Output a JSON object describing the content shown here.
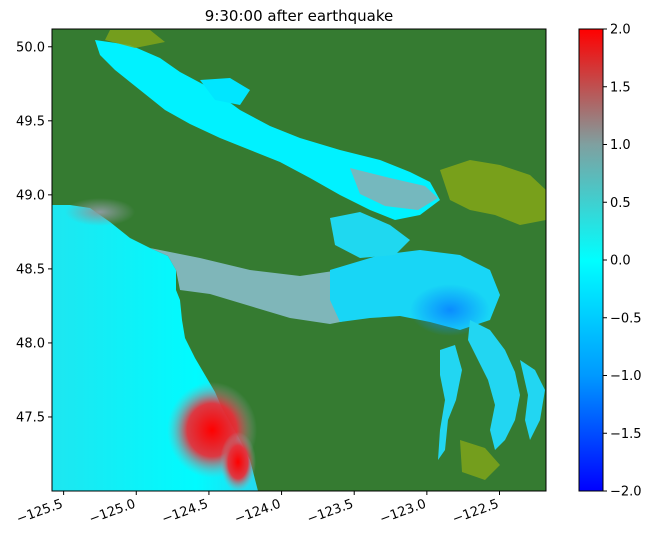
{
  "chart_data": {
    "type": "heatmap",
    "title": "9:30:00 after earthquake",
    "xlabel": "",
    "ylabel": "",
    "xlim": [
      -125.58,
      -122.18
    ],
    "ylim": [
      47.0,
      50.12
    ],
    "xticks": [
      -125.5,
      -125.0,
      -124.5,
      -124.0,
      -123.5,
      -123.0,
      -122.5
    ],
    "xtick_labels": [
      "−125.5",
      "−125.0",
      "−124.5",
      "−124.0",
      "−123.5",
      "−123.0",
      "−122.5"
    ],
    "yticks": [
      47.5,
      48.0,
      48.5,
      49.0,
      49.5,
      50.0
    ],
    "ytick_labels": [
      "47.5",
      "48.0",
      "48.5",
      "49.0",
      "49.5",
      "50.0"
    ],
    "colorbar": {
      "range": [
        -2.0,
        2.0
      ],
      "ticks": [
        -2.0,
        -1.5,
        -1.0,
        -0.5,
        0.0,
        0.5,
        1.0,
        1.5,
        2.0
      ],
      "tick_labels": [
        "−2.0",
        "−1.5",
        "−1.0",
        "−0.5",
        "0.0",
        "0.5",
        "1.0",
        "1.5",
        "2.0"
      ],
      "colors": [
        "#0000ff",
        "#0099ff",
        "#00ffff",
        "#7fa0a0",
        "#ff0000"
      ]
    },
    "land_color": "#357b31",
    "shallow_land_color": "#7fa41a",
    "grid": false
  }
}
